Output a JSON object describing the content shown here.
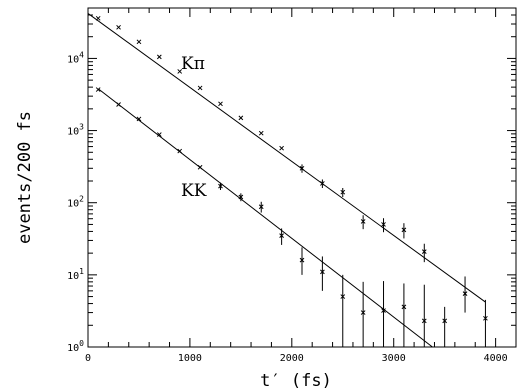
{
  "chart_data": {
    "type": "scatter",
    "xlabel": "t′ (fs)",
    "ylabel": "events/200 fs",
    "xlim": [
      0,
      4200
    ],
    "ylim": [
      1,
      50000
    ],
    "yscale": "log",
    "x_ticks": [
      "0",
      "1000",
      "2000",
      "3000",
      "4000"
    ],
    "y_ticks": [
      {
        "value": 1,
        "base": "10",
        "exp": "0"
      },
      {
        "value": 10,
        "base": "10",
        "exp": "1"
      },
      {
        "value": 100,
        "base": "10",
        "exp": "2"
      },
      {
        "value": 1000,
        "base": "10",
        "exp": "3"
      },
      {
        "value": 10000,
        "base": "10",
        "exp": "4"
      }
    ],
    "grid": false,
    "legend": "none",
    "series": [
      {
        "name": "Kπ",
        "x": [
          100,
          300,
          500,
          700,
          900,
          1100,
          1300,
          1500,
          1700,
          1900,
          2100,
          2300,
          2500,
          2700,
          2900,
          3100,
          3300,
          3500,
          3700,
          3900
        ],
        "y": [
          36000,
          27000,
          17000,
          10500,
          6600,
          3900,
          2350,
          1500,
          920,
          570,
          300,
          185,
          140,
          55,
          50,
          42,
          21,
          2.3,
          5.5,
          2.5
        ],
        "yerr_low": [
          0,
          0,
          0,
          0,
          0,
          0,
          0,
          0,
          0,
          0,
          40,
          25,
          20,
          12,
          11,
          10,
          6,
          1.3,
          2.5,
          1.5
        ],
        "yerr_high": [
          0,
          0,
          0,
          0,
          0,
          0,
          0,
          0,
          0,
          0,
          40,
          25,
          20,
          12,
          11,
          10,
          6,
          1.3,
          4,
          2
        ],
        "fit": {
          "x": [
            0,
            3900
          ],
          "y": [
            42000,
            4.2
          ]
        }
      },
      {
        "name": "KK",
        "x": [
          100,
          300,
          500,
          700,
          900,
          1100,
          1300,
          1500,
          1700,
          1900,
          2100,
          2300,
          2500,
          2700,
          2900,
          3100,
          3300
        ],
        "y": [
          3700,
          2300,
          1450,
          880,
          520,
          310,
          170,
          120,
          88,
          35,
          16,
          11,
          5,
          3,
          3.2,
          3.6,
          2.3
        ],
        "yerr_low": [
          0,
          0,
          0,
          0,
          0,
          0,
          20,
          15,
          15,
          9,
          6,
          5,
          4,
          2,
          2.2,
          2.6,
          1.3
        ],
        "yerr_high": [
          0,
          0,
          0,
          0,
          0,
          0,
          20,
          15,
          15,
          9,
          8,
          7,
          5,
          5,
          5,
          4,
          5
        ],
        "fit": {
          "x": [
            100,
            3380
          ],
          "y": [
            3800,
            1
          ]
        }
      }
    ]
  }
}
